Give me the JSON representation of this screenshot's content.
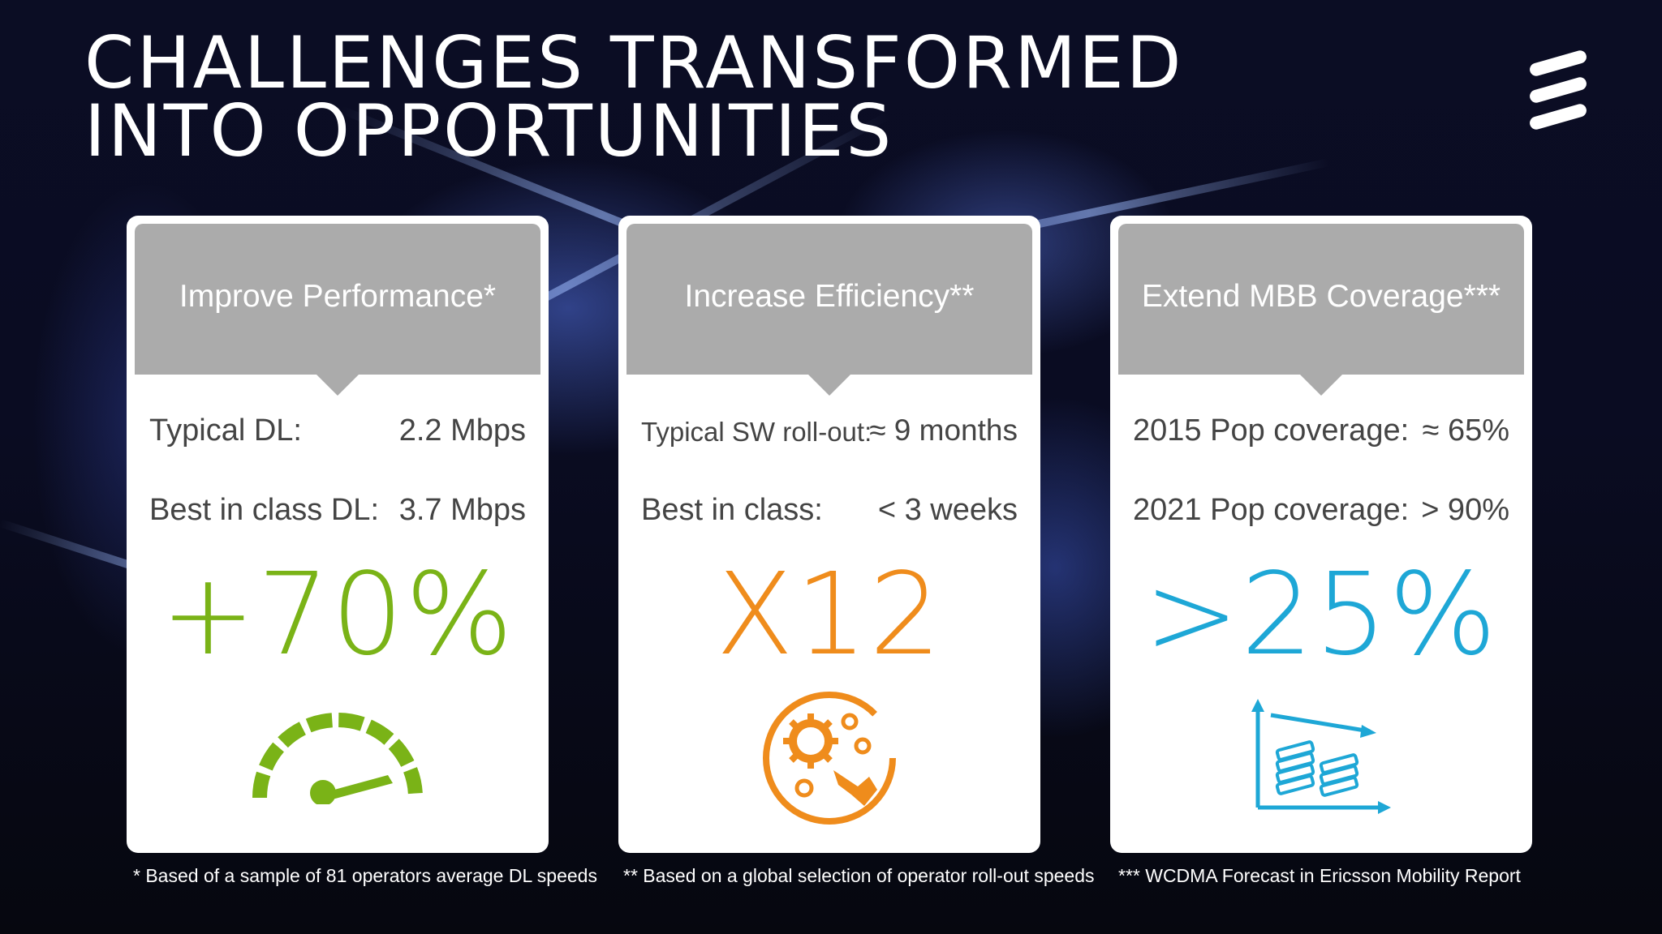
{
  "title": "CHALLENGES TRANSFORMED\nINTO OPPORTUNITIES",
  "colors": {
    "green": "#7ab317",
    "orange": "#ef8c1c",
    "blue": "#1ea7d6",
    "header_gray": "#ababab"
  },
  "cards": [
    {
      "header": "Improve Performance*",
      "rows": [
        {
          "label": "Typical DL:",
          "value": "2.2 Mbps"
        },
        {
          "label": "Best in class DL:",
          "value": "3.7 Mbps"
        }
      ],
      "big": "+70%",
      "icon": "speedometer-icon"
    },
    {
      "header": "Increase Efficiency**",
      "rows": [
        {
          "label": "Typical SW roll-out:",
          "value": "≈ 9 months"
        },
        {
          "label": "Best in class:",
          "value": "< 3 weeks"
        }
      ],
      "big": "X12",
      "icon": "gears-wrench-icon"
    },
    {
      "header": "Extend MBB Coverage***",
      "rows": [
        {
          "label": "2015 Pop coverage:",
          "value": "≈ 65%"
        },
        {
          "label": "2021 Pop coverage:",
          "value": "> 90%"
        }
      ],
      "big": ">25%",
      "icon": "cost-decline-chart-icon"
    }
  ],
  "footnotes": [
    "* Based of a sample of 81 operators average DL speeds",
    "** Based on a global selection of operator roll-out speeds",
    "*** WCDMA Forecast in Ericsson Mobility Report"
  ]
}
